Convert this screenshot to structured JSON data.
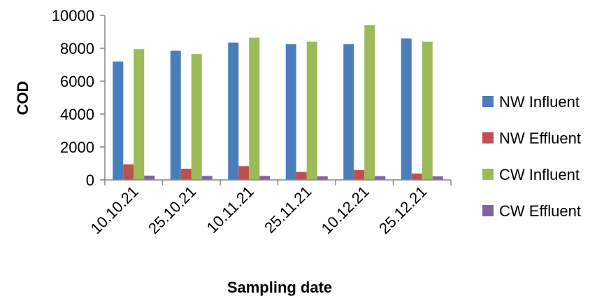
{
  "chart_data": {
    "type": "bar",
    "categories": [
      "10.10.21",
      "25.10.21",
      "10.11.21",
      "25.11.21",
      "10.12.21",
      "25.12.21"
    ],
    "series": [
      {
        "name": "NW Influent",
        "color": "#4a7ebb",
        "values": [
          7200,
          7850,
          8350,
          8250,
          8250,
          8600
        ]
      },
      {
        "name": "NW Effluent",
        "color": "#c0504d",
        "values": [
          950,
          680,
          840,
          480,
          600,
          390
        ]
      },
      {
        "name": "CW Influent",
        "color": "#9bbb59",
        "values": [
          7950,
          7650,
          8650,
          8400,
          9400,
          8400
        ]
      },
      {
        "name": "CW Effluent",
        "color": "#8064a2",
        "values": [
          260,
          240,
          240,
          220,
          230,
          220
        ]
      }
    ],
    "y_ticks": [
      "0",
      "2000",
      "4000",
      "6000",
      "8000",
      "10000"
    ],
    "ylim": [
      0,
      10000
    ],
    "xlabel": "Sampling date",
    "ylabel": "COD",
    "grid": false,
    "legend_position": "right"
  }
}
